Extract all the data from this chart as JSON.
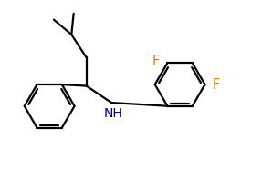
{
  "line_color": "#000000",
  "background_color": "#ffffff",
  "line_width": 1.6,
  "font_size_F": 10.5,
  "font_size_NH": 10.0,
  "figsize": [
    2.87,
    1.86
  ],
  "dpi": 100,
  "F_color": "#cc8800",
  "NH_color": "#000080",
  "xlim": [
    0,
    9.5
  ],
  "ylim": [
    0.0,
    6.2
  ]
}
